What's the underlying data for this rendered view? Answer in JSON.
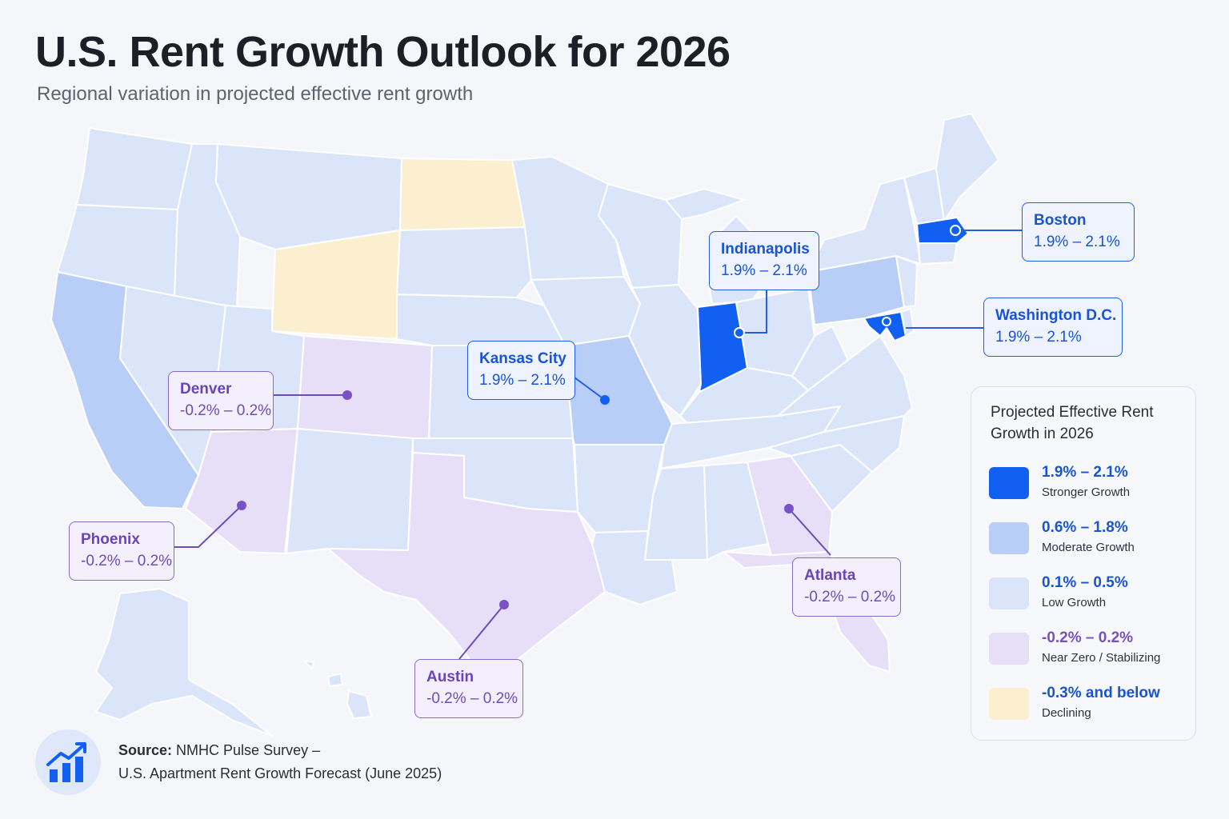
{
  "title": "U.S. Rent Growth Outlook for 2026",
  "subtitle": "Regional variation in projected effective rent growth",
  "colors": {
    "stronger": "#1160f2",
    "moderate": "#b8cef6",
    "low": "#dbe5fa",
    "near_zero": "#e7def7",
    "declining": "#fcefcf",
    "blue_text": "#1855d6",
    "purple_text": "#6e4cb8"
  },
  "callouts": [
    {
      "city": "Boston",
      "range": "1.9% – 2.1%",
      "tier": "stronger"
    },
    {
      "city": "Indianapolis",
      "range": "1.9% – 2.1%",
      "tier": "stronger"
    },
    {
      "city": "Washington D.C.",
      "range": "1.9% – 2.1%",
      "tier": "stronger"
    },
    {
      "city": "Kansas City",
      "range": "1.9% – 2.1%",
      "tier": "stronger"
    },
    {
      "city": "Denver",
      "range": "-0.2% – 0.2%",
      "tier": "near_zero"
    },
    {
      "city": "Phoenix",
      "range": "-0.2% – 0.2%",
      "tier": "near_zero"
    },
    {
      "city": "Austin",
      "range": "-0.2% – 0.2%",
      "tier": "near_zero"
    },
    {
      "city": "Atlanta",
      "range": "-0.2% – 0.2%",
      "tier": "near_zero"
    }
  ],
  "legend": {
    "title": "Projected Effective Rent Growth in 2026",
    "items": [
      {
        "range": "1.9% – 2.1%",
        "desc": "Stronger Growth",
        "color": "#1160f2",
        "text_color": "#1855d6"
      },
      {
        "range": "0.6% – 1.8%",
        "desc": "Moderate Growth",
        "color": "#b8cef6",
        "text_color": "#1855d6"
      },
      {
        "range": "0.1% – 0.5%",
        "desc": "Low Growth",
        "color": "#dbe5fa",
        "text_color": "#1855d6"
      },
      {
        "range": "-0.2% – 0.2%",
        "desc": "Near Zero / Stabilizing",
        "color": "#e7def7",
        "text_color": "#7a4fc4"
      },
      {
        "range": "-0.3% and below",
        "desc": "Declining",
        "color": "#fcefcf",
        "text_color": "#1855d6"
      }
    ]
  },
  "source": {
    "label": "Source:",
    "line1": "NMHC Pulse Survey –",
    "line2": "U.S. Apartment Rent Growth Forecast (June 2025)",
    "icon": "chart-growth-icon"
  }
}
